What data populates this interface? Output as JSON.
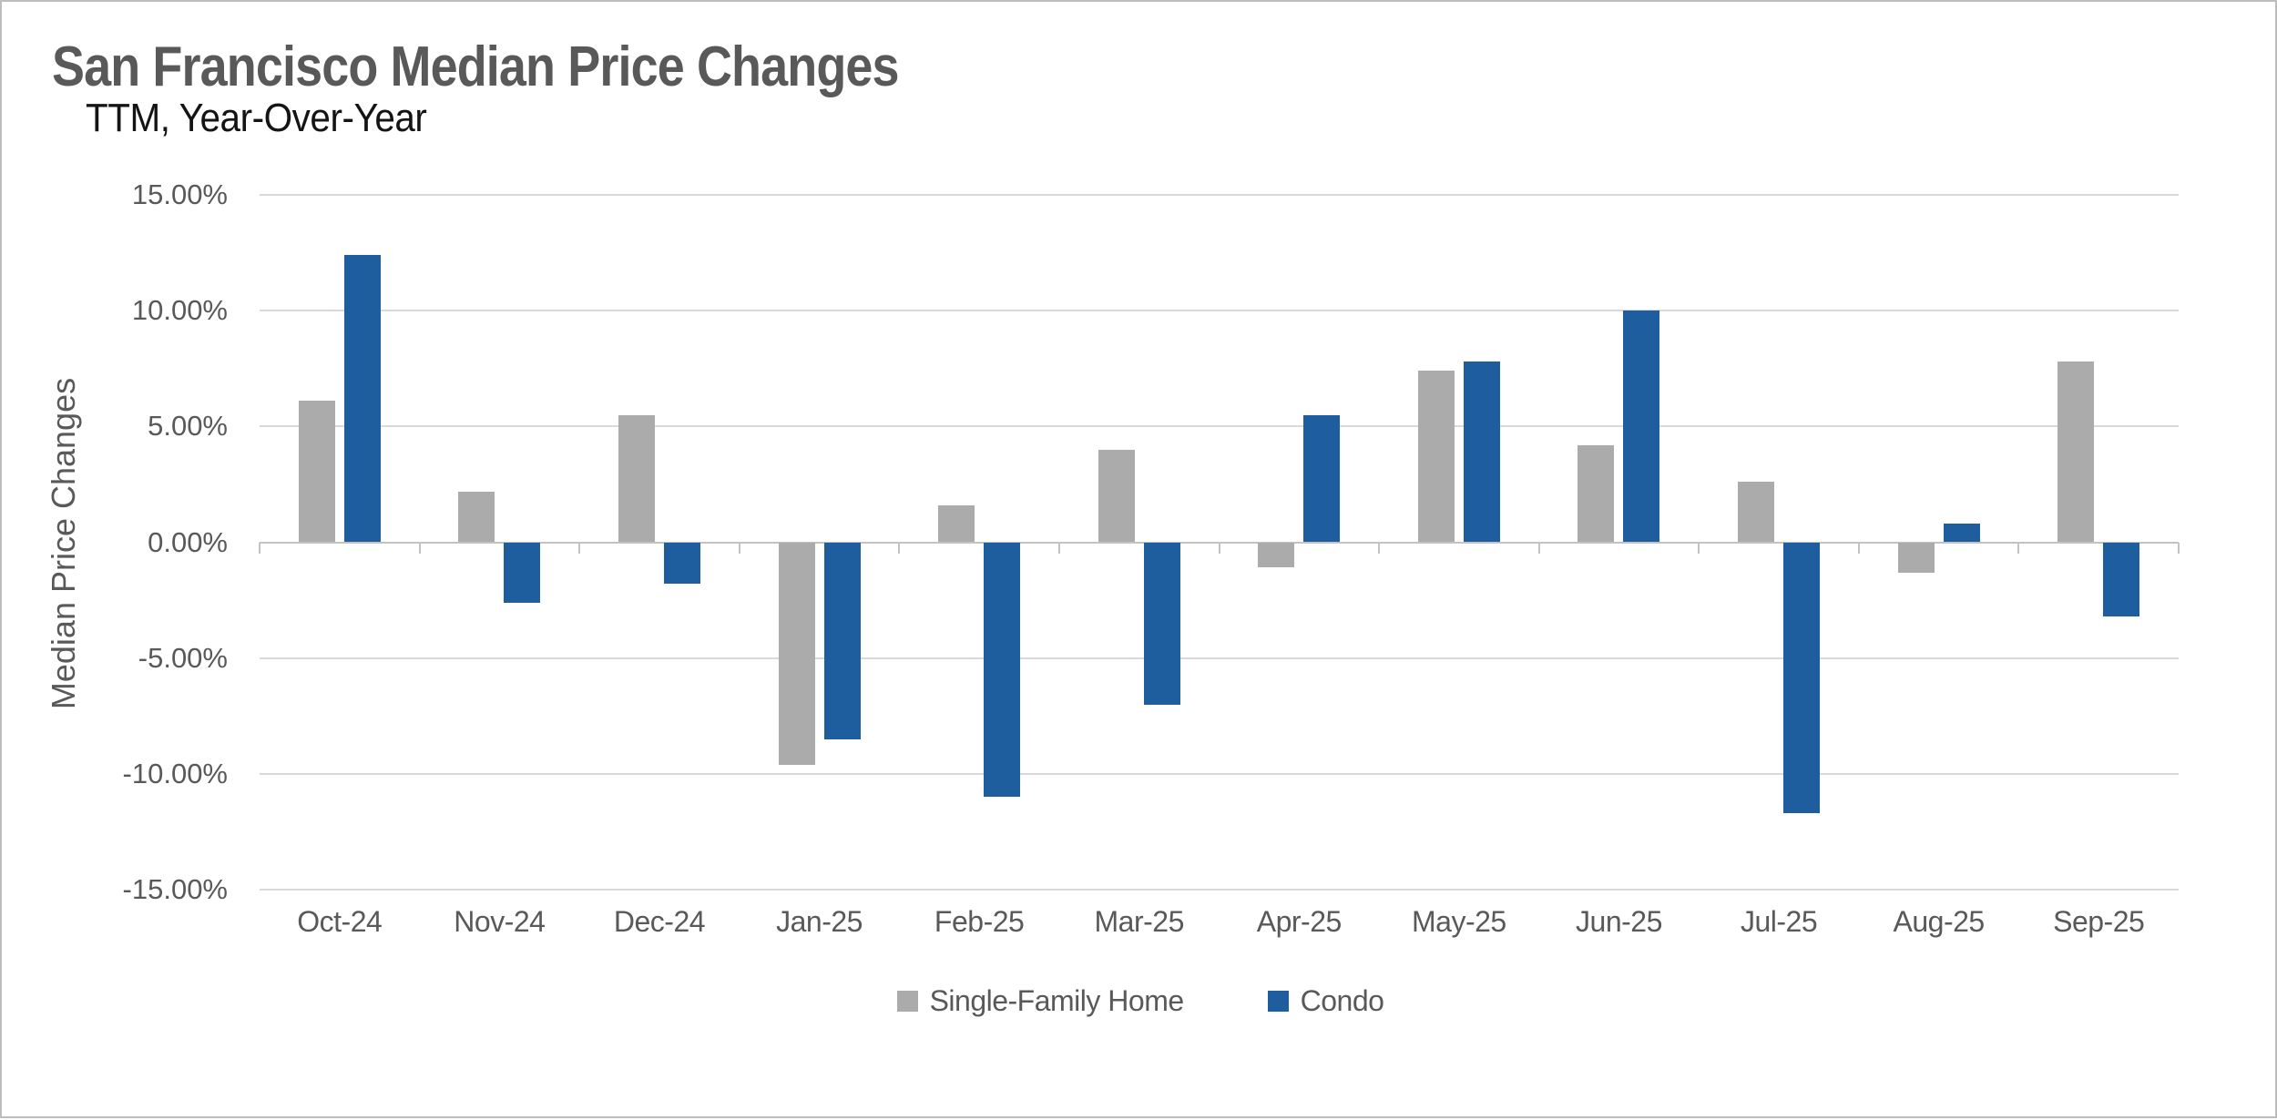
{
  "chart_data": {
    "type": "bar",
    "title": "San Francisco Median Price Changes",
    "subtitle": "TTM, Year-Over-Year",
    "ylabel": "Median Price Changes",
    "xlabel": "",
    "categories": [
      "Oct-24",
      "Nov-24",
      "Dec-24",
      "Jan-25",
      "Feb-25",
      "Mar-25",
      "Apr-25",
      "May-25",
      "Jun-25",
      "Jul-25",
      "Aug-25",
      "Sep-25"
    ],
    "series": [
      {
        "name": "Single-Family Home",
        "color": "#ABABAB",
        "values": [
          6.1,
          2.2,
          5.5,
          -9.6,
          1.6,
          4.0,
          -1.1,
          7.4,
          4.2,
          2.6,
          -1.3,
          7.8
        ]
      },
      {
        "name": "Condo",
        "color": "#1F5E9E",
        "values": [
          12.4,
          -2.6,
          -1.8,
          -8.5,
          -11.0,
          -7.0,
          5.5,
          7.8,
          10.0,
          -11.7,
          0.8,
          -3.2
        ]
      }
    ],
    "ylim": [
      -15,
      15
    ],
    "yticks": [
      {
        "value": 15,
        "label": "15.00%"
      },
      {
        "value": 10,
        "label": "10.00%"
      },
      {
        "value": 5,
        "label": "5.00%"
      },
      {
        "value": 0,
        "label": "0.00%"
      },
      {
        "value": -5,
        "label": "-5.00%"
      },
      {
        "value": -10,
        "label": "-10.00%"
      },
      {
        "value": -15,
        "label": "-15.00%"
      }
    ],
    "grid": true,
    "legend_position": "bottom",
    "colors": {
      "title_text": "#595959",
      "subtitle_text": "#141414",
      "axis_text": "#595959",
      "gridline": "#D9D9D9",
      "zero_line": "#C3C3C3"
    }
  }
}
